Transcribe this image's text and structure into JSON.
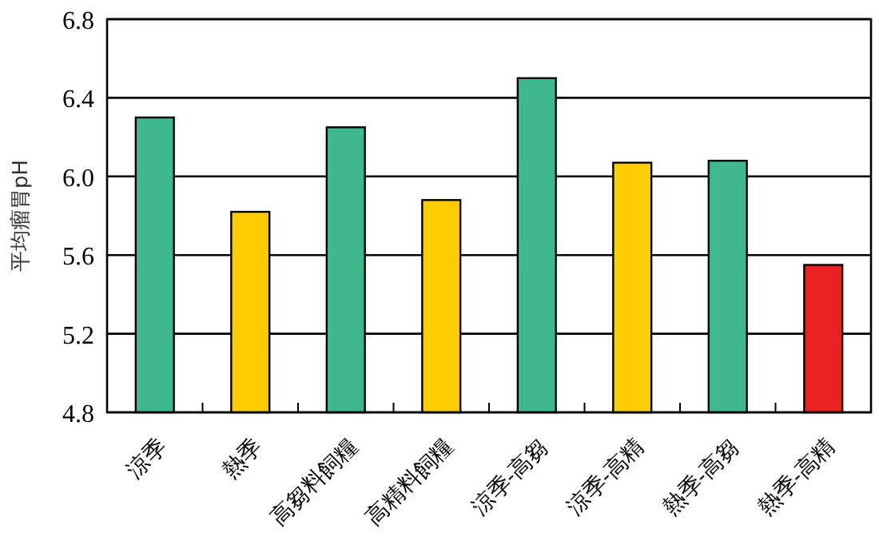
{
  "chart_data": {
    "type": "bar",
    "ylabel": "平均瘤胃pH",
    "categories": [
      "涼季",
      "熱季",
      "高芻料飼糧",
      "高精料飼糧",
      "涼季-高芻",
      "涼季-高精",
      "熱季-高芻",
      "熱季-高精"
    ],
    "values": [
      6.3,
      5.82,
      6.25,
      5.88,
      6.5,
      6.07,
      6.08,
      5.55
    ],
    "colors": [
      "#40b88e",
      "#ffcc00",
      "#40b88e",
      "#ffcc00",
      "#40b88e",
      "#ffcc00",
      "#40b88e",
      "#e82222"
    ],
    "ylim": [
      4.8,
      6.8
    ],
    "yticks": [
      4.8,
      5.2,
      5.6,
      {
        "value": 6,
        "label": "6.0"
      },
      6.4,
      6.8
    ],
    "grid": "y"
  }
}
